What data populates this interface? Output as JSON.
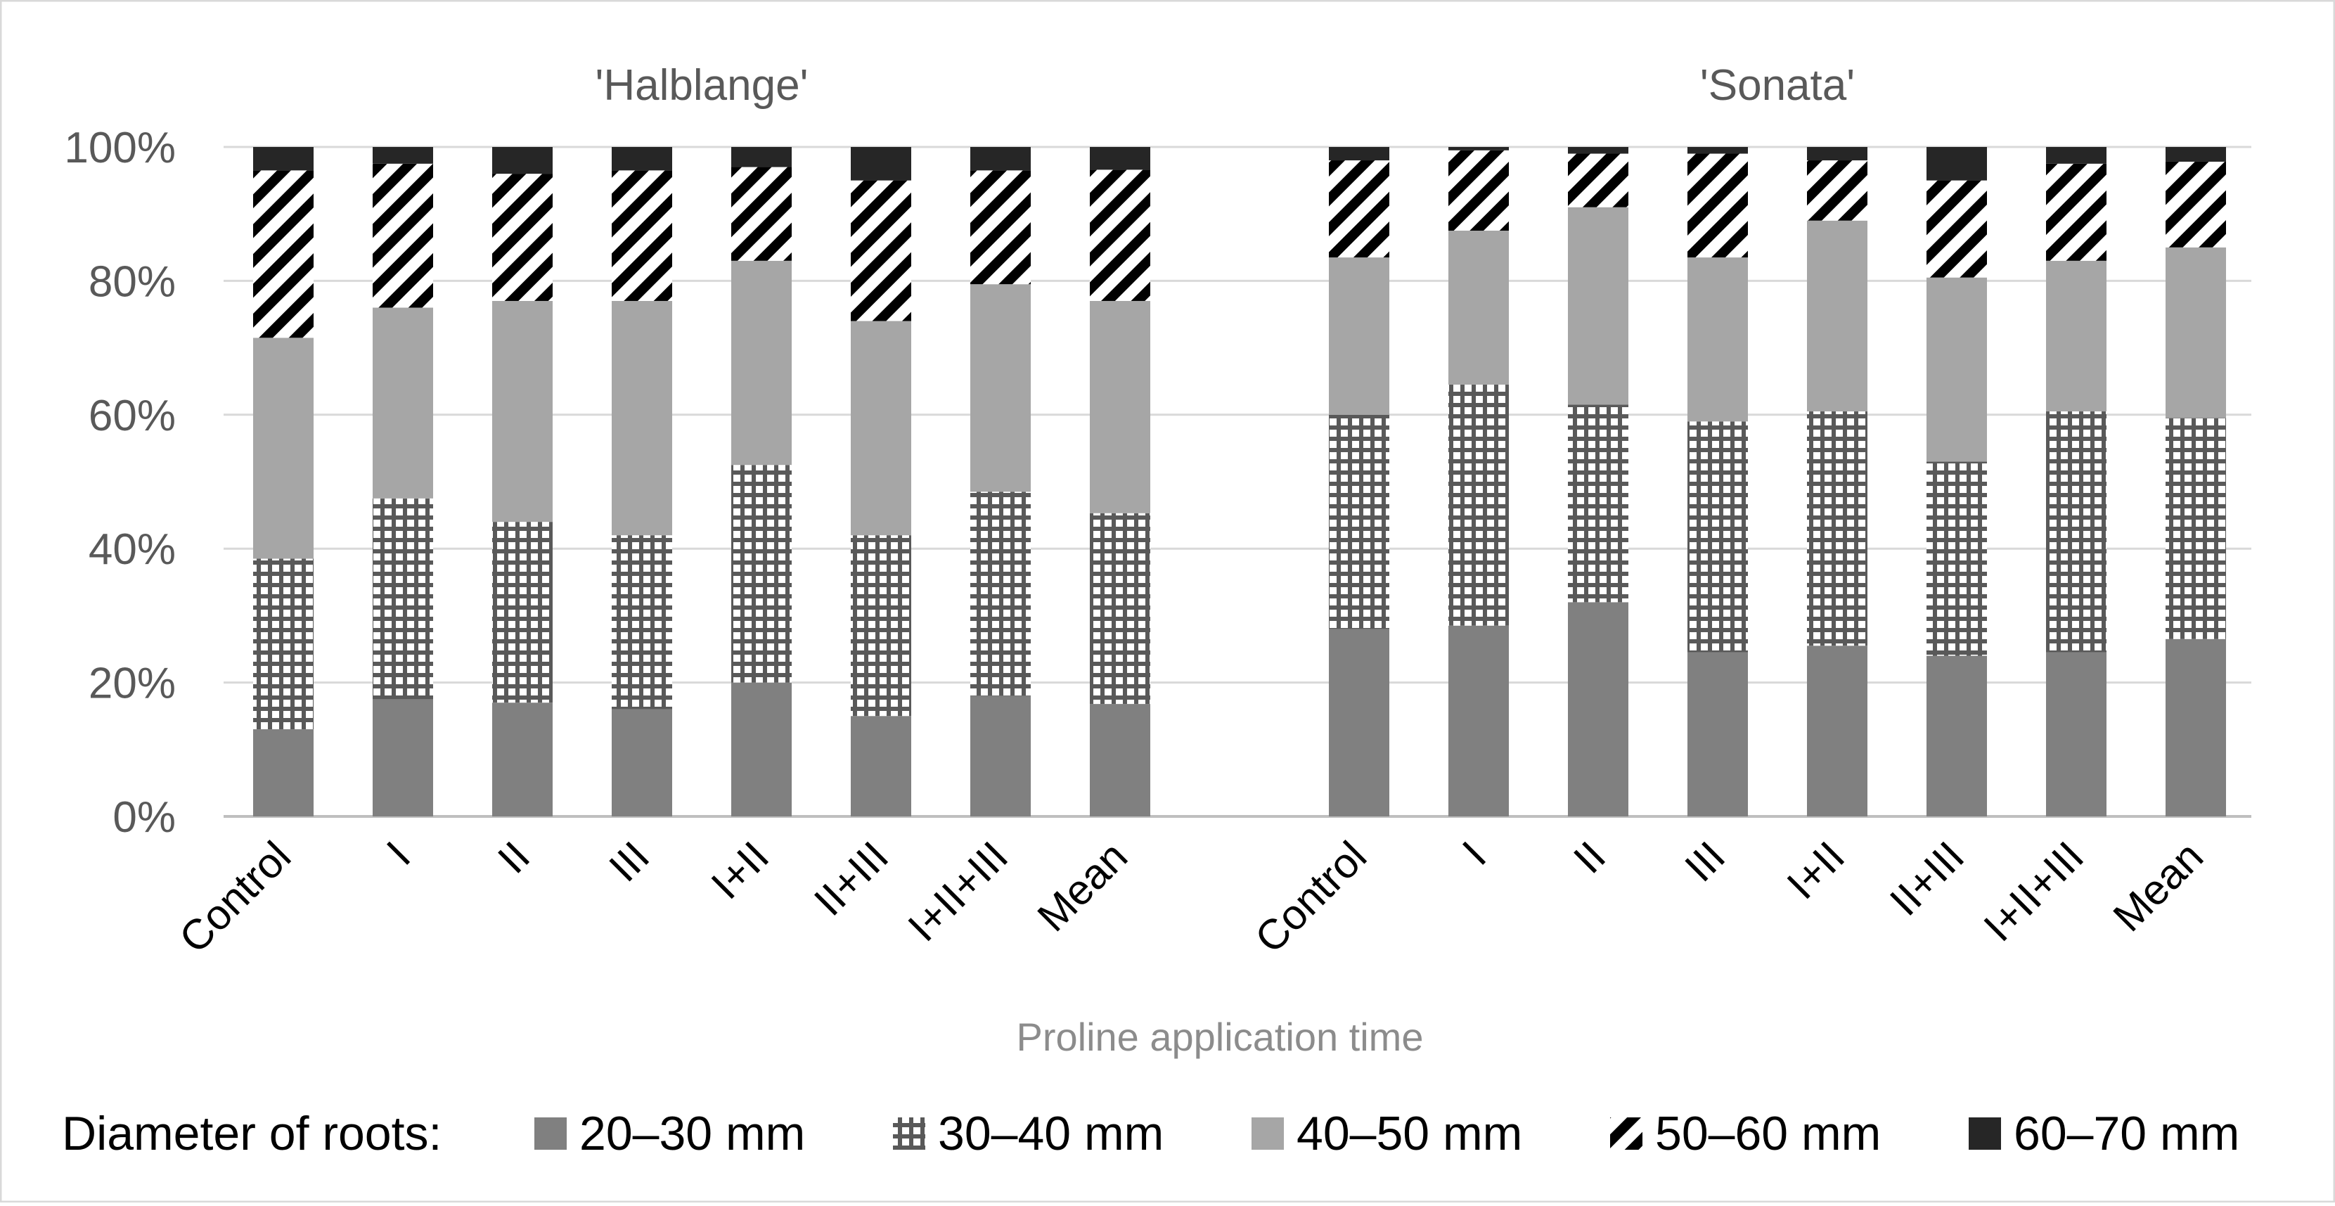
{
  "chart_data": {
    "type": "bar",
    "stacked": "percent",
    "xlabel": "Proline application time",
    "ylabel": "",
    "ylim": [
      0,
      100
    ],
    "y_ticks": [
      "0%",
      "20%",
      "40%",
      "60%",
      "80%",
      "100%"
    ],
    "grid": true,
    "legend_title": "Diameter of roots:",
    "legend_position": "bottom",
    "series_names": [
      "20–30 mm",
      "30–40 mm",
      "40–50 mm",
      "50–60 mm",
      "60–70 mm"
    ],
    "series_colors": [
      "#808080",
      "#595959",
      "#a6a6a6",
      "#000000",
      "#262626"
    ],
    "series_patterns": [
      "solid",
      "grid",
      "solid",
      "diagonal",
      "solid"
    ],
    "panels": [
      {
        "title": "'Halblange'",
        "categories": [
          "Control",
          "I",
          "II",
          "III",
          "I+II",
          "II+III",
          "I+II+III",
          "Mean"
        ],
        "series": [
          {
            "name": "20–30 mm",
            "values": [
              13,
              17.5,
              17,
              16,
              20,
              15,
              18,
              16.8
            ]
          },
          {
            "name": "30–40 mm",
            "values": [
              25.5,
              30,
              27,
              26,
              32.5,
              27,
              30.5,
              28.5
            ]
          },
          {
            "name": "40–50 mm",
            "values": [
              33,
              28.5,
              33,
              35,
              30.5,
              32,
              31,
              31.7
            ]
          },
          {
            "name": "50–60 mm",
            "values": [
              25,
              21.5,
              19,
              19.5,
              14,
              21,
              17,
              19.6
            ]
          },
          {
            "name": "60–70 mm",
            "values": [
              3.5,
              2.5,
              4,
              3.5,
              3,
              5,
              3.5,
              3.4
            ]
          }
        ]
      },
      {
        "title": "'Sonata'",
        "categories": [
          "Control",
          "I",
          "II",
          "III",
          "I+II",
          "II+III",
          "I+II+III",
          "Mean"
        ],
        "series": [
          {
            "name": "20–30 mm",
            "values": [
              28,
              28.5,
              32,
              24.5,
              25.5,
              24,
              24.5,
              26.5
            ]
          },
          {
            "name": "30–40 mm",
            "values": [
              32,
              36,
              29.5,
              34.5,
              35,
              29,
              36,
              33
            ]
          },
          {
            "name": "40–50 mm",
            "values": [
              23.5,
              23,
              29.5,
              24.5,
              28.5,
              27.5,
              22.5,
              25.5
            ]
          },
          {
            "name": "50–60 mm",
            "values": [
              14.5,
              12,
              8,
              15.5,
              9,
              14.5,
              14.5,
              12.8
            ]
          },
          {
            "name": "60–70 mm",
            "values": [
              2,
              0.5,
              1,
              1,
              2,
              5,
              2.5,
              2.2
            ]
          }
        ]
      }
    ]
  }
}
